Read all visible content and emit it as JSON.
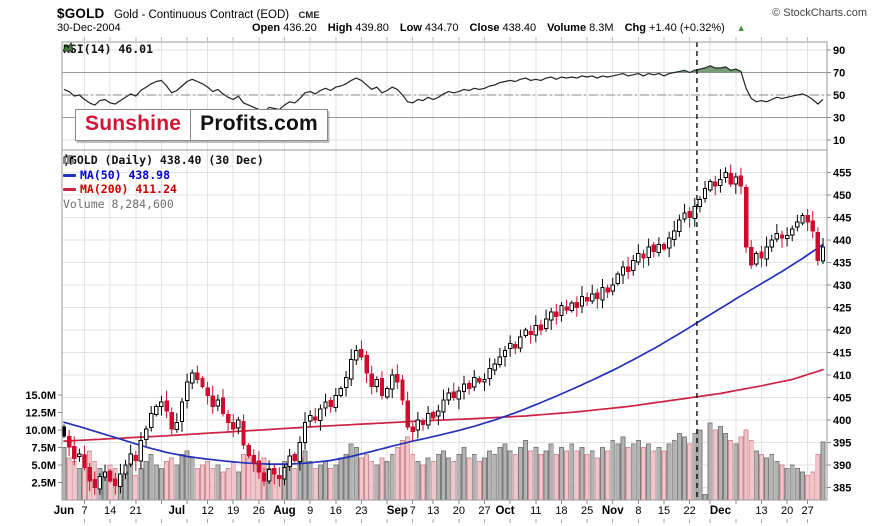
{
  "header": {
    "symbol": "$GOLD",
    "name": "Gold - Continuous Contract (EOD)",
    "exchange": "CME",
    "copyright": "© StockCharts.com",
    "date": "30-Dec-2004",
    "stats": [
      {
        "label": "Open",
        "value": "436.20"
      },
      {
        "label": "High",
        "value": "439.80"
      },
      {
        "label": "Low",
        "value": "434.70"
      },
      {
        "label": "Close",
        "value": "438.40"
      },
      {
        "label": "Volume",
        "value": "8.3M"
      },
      {
        "label": "Chg",
        "value": "+1.40 (+0.32%)"
      }
    ],
    "chg_arrow": "▲"
  },
  "watermark": {
    "left": "Sunshine",
    "right": "Profits.com"
  },
  "rsi_panel": {
    "label": "RSI(14) 46.01"
  },
  "legend": {
    "title": "$GOLD (Daily) 438.40 (30 Dec)",
    "ma50": "MA(50) 438.98",
    "ma200": "MA(200) 411.24",
    "volume": "Volume 8,284,600"
  },
  "axes": {
    "price_ticks": [
      455,
      450,
      445,
      440,
      435,
      430,
      425,
      420,
      415,
      410,
      405,
      400,
      395,
      390,
      385
    ],
    "volume_ticks": [
      {
        "v": 15,
        "t": "15.0M"
      },
      {
        "v": 12.5,
        "t": "12.5M"
      },
      {
        "v": 10,
        "t": "10.0M"
      },
      {
        "v": 7.5,
        "t": "7.5M"
      },
      {
        "v": 5,
        "t": "5.0M"
      },
      {
        "v": 2.5,
        "t": "2.5M"
      }
    ],
    "rsi_ticks": [
      90,
      70,
      50,
      30,
      10
    ],
    "grid_idx": [
      4,
      9,
      14,
      19,
      24,
      28,
      33,
      38,
      43,
      48,
      53,
      58,
      63,
      68,
      72,
      77,
      82,
      87,
      92,
      97,
      102,
      107,
      112,
      117,
      122,
      126,
      131,
      136,
      141,
      145
    ],
    "x_labels": [
      {
        "i": 0,
        "t": "Jun",
        "b": 1
      },
      {
        "i": 4,
        "t": "7",
        "b": 0
      },
      {
        "i": 9,
        "t": "14",
        "b": 0
      },
      {
        "i": 14,
        "t": "21",
        "b": 0
      },
      {
        "i": 22,
        "t": "Jul",
        "b": 1
      },
      {
        "i": 28,
        "t": "12",
        "b": 0
      },
      {
        "i": 33,
        "t": "19",
        "b": 0
      },
      {
        "i": 38,
        "t": "26",
        "b": 0
      },
      {
        "i": 43,
        "t": "Aug",
        "b": 1
      },
      {
        "i": 48,
        "t": "9",
        "b": 0
      },
      {
        "i": 53,
        "t": "16",
        "b": 0
      },
      {
        "i": 58,
        "t": "23",
        "b": 0
      },
      {
        "i": 65,
        "t": "Sep",
        "b": 1
      },
      {
        "i": 68,
        "t": "7",
        "b": 0
      },
      {
        "i": 72,
        "t": "13",
        "b": 0
      },
      {
        "i": 77,
        "t": "20",
        "b": 0
      },
      {
        "i": 82,
        "t": "27",
        "b": 0
      },
      {
        "i": 86,
        "t": "Oct",
        "b": 1
      },
      {
        "i": 92,
        "t": "11",
        "b": 0
      },
      {
        "i": 97,
        "t": "18",
        "b": 0
      },
      {
        "i": 102,
        "t": "25",
        "b": 0
      },
      {
        "i": 107,
        "t": "Nov",
        "b": 1
      },
      {
        "i": 112,
        "t": "8",
        "b": 0
      },
      {
        "i": 117,
        "t": "15",
        "b": 0
      },
      {
        "i": 122,
        "t": "22",
        "b": 0
      },
      {
        "i": 128,
        "t": "Dec",
        "b": 1
      },
      {
        "i": 136,
        "t": "13",
        "b": 0
      },
      {
        "i": 141,
        "t": "20",
        "b": 0
      },
      {
        "i": 145,
        "t": "27",
        "b": 0
      }
    ]
  },
  "chart_data": {
    "type": "candlestick",
    "title": "$GOLD (Daily)",
    "last_close": 438.4,
    "rsi_value": 46.01,
    "ma50_value": 438.98,
    "ma200_value": 411.24,
    "last_volume": 8284600,
    "ylim": [
      383,
      458
    ],
    "rsi_guides": {
      "upper": 70,
      "mid": 50,
      "lower": 30
    },
    "dashed_vline_day_index": 124,
    "closes": [
      396.5,
      394.0,
      391.5,
      392.5,
      389.5,
      386.5,
      385.0,
      387.5,
      388.5,
      386.5,
      385.5,
      388.0,
      390.0,
      392.5,
      391.0,
      395.5,
      398.0,
      401.5,
      403.0,
      404.0,
      402.0,
      398.0,
      399.5,
      404.0,
      408.5,
      410.5,
      409.0,
      407.5,
      405.5,
      403.0,
      404.5,
      401.5,
      399.5,
      398.0,
      400.0,
      394.5,
      392.0,
      390.5,
      388.5,
      386.5,
      389.0,
      388.0,
      387.0,
      389.5,
      392.0,
      391.0,
      395.0,
      399.5,
      401.0,
      400.0,
      402.5,
      404.0,
      403.0,
      405.5,
      407.0,
      409.5,
      413.5,
      415.5,
      414.0,
      410.5,
      407.5,
      409.0,
      405.5,
      407.0,
      410.0,
      408.5,
      404.5,
      398.5,
      397.5,
      400.0,
      399.0,
      401.5,
      400.5,
      402.0,
      404.5,
      406.0,
      405.0,
      406.5,
      408.0,
      407.0,
      409.5,
      408.5,
      409.0,
      411.5,
      412.5,
      414.0,
      415.5,
      417.0,
      416.0,
      418.5,
      420.0,
      419.0,
      421.0,
      420.0,
      422.5,
      424.0,
      423.0,
      425.5,
      424.5,
      426.0,
      425.0,
      427.5,
      426.5,
      428.0,
      427.0,
      429.5,
      428.5,
      430.0,
      432.5,
      434.0,
      433.0,
      435.5,
      437.0,
      436.0,
      438.5,
      437.5,
      439.0,
      438.0,
      440.5,
      442.0,
      444.5,
      446.0,
      445.0,
      447.5,
      449.0,
      451.5,
      453.0,
      452.0,
      453.5,
      455.0,
      452.5,
      454.0,
      452.0,
      438.5,
      434.5,
      437.0,
      436.0,
      438.5,
      440.0,
      441.5,
      440.5,
      441.0,
      442.5,
      444.0,
      445.5,
      444.0,
      442.0,
      435.5,
      438.4
    ],
    "volumes": [
      7.5,
      6.0,
      5.5,
      4.5,
      6.5,
      7.0,
      5.5,
      4.5,
      4.0,
      5.0,
      4.5,
      3.5,
      4.0,
      5.0,
      3.5,
      4.5,
      5.5,
      6.5,
      5.0,
      4.5,
      5.5,
      6.0,
      5.0,
      6.5,
      7.0,
      6.0,
      4.5,
      5.0,
      5.5,
      4.5,
      5.0,
      4.0,
      4.5,
      5.5,
      4.0,
      6.5,
      6.0,
      5.5,
      5.0,
      6.0,
      4.5,
      4.0,
      3.5,
      5.5,
      5.0,
      4.5,
      6.0,
      7.0,
      5.5,
      4.5,
      5.0,
      5.5,
      4.5,
      5.0,
      6.0,
      6.5,
      8.0,
      7.5,
      6.0,
      6.5,
      5.5,
      5.0,
      6.0,
      5.5,
      6.5,
      7.5,
      8.5,
      9.0,
      6.5,
      5.5,
      5.0,
      6.0,
      5.5,
      6.5,
      7.0,
      6.0,
      5.5,
      6.5,
      7.5,
      6.0,
      6.5,
      5.5,
      6.0,
      7.0,
      6.5,
      7.5,
      8.0,
      7.0,
      6.5,
      7.5,
      8.5,
      7.0,
      7.5,
      6.5,
      7.0,
      8.0,
      6.5,
      7.5,
      7.0,
      8.0,
      7.0,
      7.5,
      6.5,
      7.0,
      6.0,
      7.5,
      7.0,
      8.5,
      8.0,
      9.0,
      7.5,
      8.0,
      8.5,
      7.5,
      8.0,
      7.0,
      7.5,
      7.0,
      8.0,
      8.5,
      9.5,
      9.0,
      8.0,
      9.5,
      10.0,
      0.8,
      11.0,
      10.0,
      10.5,
      9.5,
      8.5,
      8.0,
      9.0,
      10.0,
      8.5,
      7.0,
      6.5,
      6.0,
      6.5,
      5.5,
      5.0,
      4.5,
      5.0,
      4.5,
      4.0,
      3.5,
      4.0,
      6.5,
      8.3
    ],
    "rsi": [
      55,
      53,
      49,
      50,
      46,
      43,
      41,
      45,
      46,
      43,
      42,
      45,
      48,
      51,
      49,
      54,
      57,
      60,
      62,
      63,
      58,
      52,
      54,
      58,
      62,
      64,
      62,
      60,
      57,
      53,
      55,
      51,
      48,
      46,
      49,
      43,
      41,
      39,
      37,
      35,
      39,
      38,
      37,
      41,
      44,
      43,
      47,
      52,
      53,
      51,
      54,
      56,
      54,
      57,
      58,
      60,
      63,
      65,
      63,
      59,
      55,
      57,
      52,
      54,
      57,
      55,
      50,
      44,
      43,
      46,
      45,
      48,
      46,
      48,
      51,
      53,
      52,
      53,
      55,
      54,
      56,
      55,
      56,
      58,
      59,
      61,
      62,
      63,
      62,
      64,
      65,
      63,
      64,
      63,
      65,
      66,
      64,
      66,
      65,
      66,
      65,
      67,
      66,
      67,
      65,
      67,
      66,
      67,
      68,
      69,
      67,
      68,
      69,
      67,
      69,
      68,
      69,
      67,
      69,
      70,
      71,
      72,
      70,
      72,
      73,
      74,
      76,
      74,
      74,
      75,
      72,
      73,
      71,
      56,
      47,
      44,
      45,
      44,
      46,
      48,
      47,
      48,
      49,
      50,
      51,
      49,
      46,
      42,
      46
    ],
    "ma50_keyframes": [
      [
        0,
        399.5
      ],
      [
        4,
        398.2
      ],
      [
        8,
        396.8
      ],
      [
        12,
        395.4
      ],
      [
        16,
        394.0
      ],
      [
        20,
        392.8
      ],
      [
        24,
        391.9
      ],
      [
        28,
        391.3
      ],
      [
        32,
        390.8
      ],
      [
        36,
        390.4
      ],
      [
        40,
        390.2
      ],
      [
        44,
        390.2
      ],
      [
        48,
        390.5
      ],
      [
        52,
        391.0
      ],
      [
        56,
        391.9
      ],
      [
        60,
        393.0
      ],
      [
        64,
        394.2
      ],
      [
        68,
        395.3
      ],
      [
        72,
        396.3
      ],
      [
        76,
        397.4
      ],
      [
        80,
        398.6
      ],
      [
        84,
        400.0
      ],
      [
        88,
        401.6
      ],
      [
        92,
        403.4
      ],
      [
        96,
        405.3
      ],
      [
        100,
        407.3
      ],
      [
        104,
        409.4
      ],
      [
        108,
        411.6
      ],
      [
        112,
        414.0
      ],
      [
        116,
        416.5
      ],
      [
        120,
        419.2
      ],
      [
        124,
        422.0
      ],
      [
        128,
        424.8
      ],
      [
        132,
        427.6
      ],
      [
        136,
        430.3
      ],
      [
        140,
        433.0
      ],
      [
        144,
        435.9
      ],
      [
        148,
        439.0
      ]
    ],
    "ma200_keyframes": [
      [
        0,
        395.3
      ],
      [
        10,
        395.9
      ],
      [
        20,
        396.5
      ],
      [
        30,
        397.2
      ],
      [
        40,
        397.9
      ],
      [
        50,
        398.6
      ],
      [
        60,
        399.2
      ],
      [
        70,
        399.8
      ],
      [
        80,
        400.3
      ],
      [
        90,
        400.9
      ],
      [
        100,
        401.8
      ],
      [
        110,
        403.0
      ],
      [
        120,
        404.6
      ],
      [
        128,
        405.9
      ],
      [
        136,
        407.6
      ],
      [
        142,
        409.0
      ],
      [
        148,
        411.2
      ]
    ]
  },
  "colors": {
    "candle_up": "#000000",
    "candle_down": "#cf0a2c",
    "ma50": "#2233bb",
    "ma200": "#cc2244",
    "vol_up_fill": "#b3b3b3",
    "vol_up_stroke": "#7d7d7d",
    "vol_down_fill": "#f2c5c9",
    "vol_down_stroke": "#cf8f97",
    "grid": "#e2e2e2",
    "border": "#999999",
    "rsi_line": "#222222",
    "rsi_fill": "#5e8d5e",
    "guide": "#999999",
    "dashed": "#111111",
    "axis_text": "#000000"
  }
}
